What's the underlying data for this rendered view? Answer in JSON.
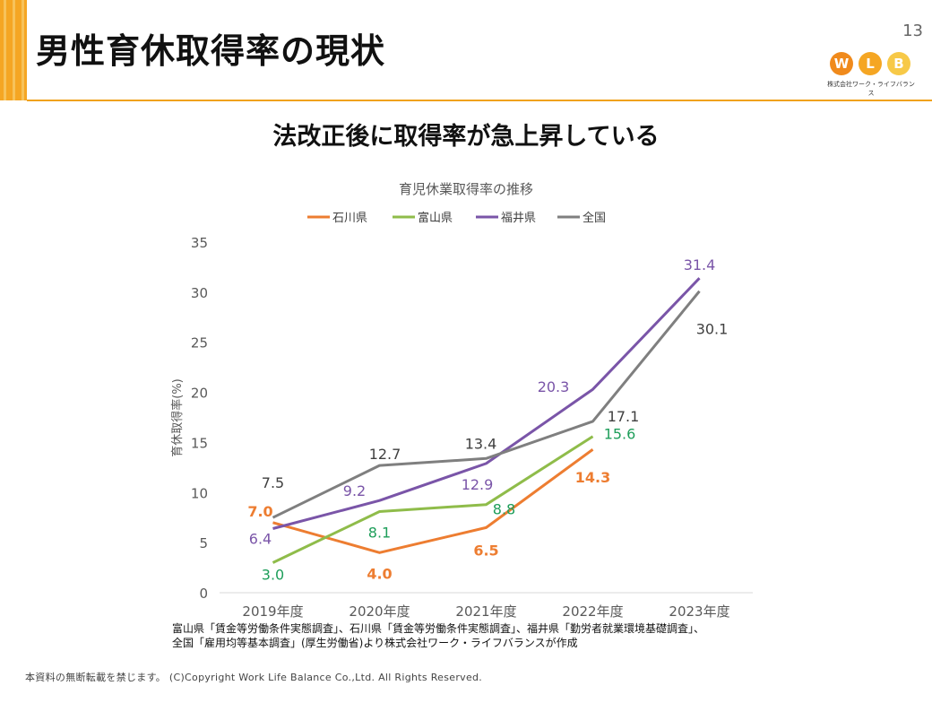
{
  "header": {
    "title": "男性育休取得率の現状",
    "page_number": "13",
    "logo": {
      "letters": [
        "W",
        "L",
        "B"
      ],
      "subtitle": "株式会社ワーク・ライフバランス"
    }
  },
  "subtitle": "法改正後に取得率が急上昇している",
  "chart_data": {
    "type": "line",
    "title": "育児休業取得率の推移",
    "ylabel": "育休取得率(%)",
    "xlabel": "",
    "ylim": [
      0,
      35
    ],
    "yticks": [
      "0",
      "5",
      "10",
      "15",
      "20",
      "25",
      "30",
      "35"
    ],
    "categories": [
      "2019年度",
      "2020年度",
      "2021年度",
      "2022年度",
      "2023年度"
    ],
    "legend_position": "top",
    "grid": false,
    "series": [
      {
        "name": "石川県",
        "color": "#ed7d31",
        "values": [
          7.0,
          4.0,
          6.5,
          14.3,
          null
        ],
        "labels": [
          "7.0",
          "4.0",
          "6.5",
          "14.3",
          ""
        ]
      },
      {
        "name": "富山県",
        "color": "#8fbc4a",
        "label_color": "#1e9e5a",
        "values": [
          3.0,
          8.1,
          8.8,
          15.6,
          null
        ],
        "labels": [
          "3.0",
          "8.1",
          "8.8",
          "15.6",
          ""
        ]
      },
      {
        "name": "福井県",
        "color": "#7a55a8",
        "values": [
          6.4,
          9.2,
          12.9,
          20.3,
          31.4
        ],
        "labels": [
          "6.4",
          "9.2",
          "12.9",
          "20.3",
          "31.4"
        ]
      },
      {
        "name": "全国",
        "color": "#7f7f7f",
        "label_color": "#404040",
        "values": [
          7.5,
          12.7,
          13.4,
          17.1,
          30.1
        ],
        "labels": [
          "7.5",
          "12.7",
          "13.4",
          "17.1",
          "30.1"
        ]
      }
    ]
  },
  "source_note": [
    "富山県「賃金等労働条件実態調査」、石川県「賃金等労働条件実態調査」、福井県「勤労者就業環境基礎調査」、",
    "全国「雇用均等基本調査」(厚生労働省)より株式会社ワーク・ライフバランスが作成"
  ],
  "footer": "本資料の無断転載を禁じます。 (C)Copyright  Work Life Balance Co.,Ltd. All Rights Reserved."
}
